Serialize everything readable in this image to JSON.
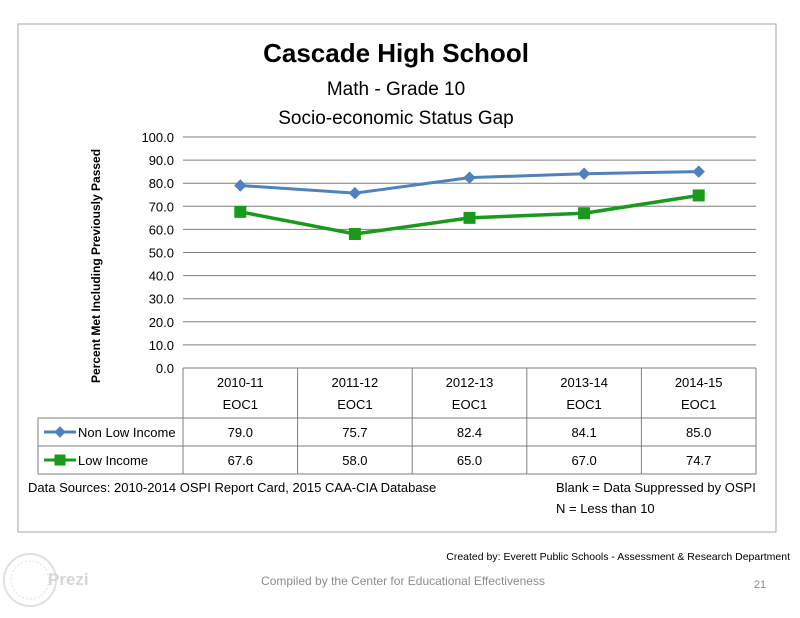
{
  "chart_data": {
    "type": "line",
    "title": "Cascade High School",
    "subtitle_1": "Math  - Grade 10",
    "subtitle_2": "Socio-economic Status Gap",
    "ylabel": "Percent Met Including Previously Passed",
    "xlabel": "",
    "ylim": [
      0,
      100
    ],
    "ytick_step": 10,
    "y_tick_labels": [
      "0.0",
      "10.0",
      "20.0",
      "30.0",
      "40.0",
      "50.0",
      "60.0",
      "70.0",
      "80.0",
      "90.0",
      "100.0"
    ],
    "categories": [
      {
        "year": "2010-11",
        "test": "EOC1"
      },
      {
        "year": "2011-12",
        "test": "EOC1"
      },
      {
        "year": "2012-13",
        "test": "EOC1"
      },
      {
        "year": "2013-14",
        "test": "EOC1"
      },
      {
        "year": "2014-15",
        "test": "EOC1"
      }
    ],
    "series": [
      {
        "name": "Non Low Income",
        "values": [
          79.0,
          75.7,
          82.4,
          84.1,
          85.0
        ],
        "labels": [
          "79.0",
          "75.7",
          "82.4",
          "84.1",
          "85.0"
        ],
        "color": "#4f81bd",
        "marker": "diamond"
      },
      {
        "name": "Low Income",
        "values": [
          67.6,
          58.0,
          65.0,
          67.0,
          74.7
        ],
        "labels": [
          "67.6",
          "58.0",
          "65.0",
          "67.0",
          "74.7"
        ],
        "color": "#1a9a1a",
        "marker": "square"
      }
    ],
    "grid": true,
    "legend": "data-table",
    "data_sources": "Data Sources: 2010-2014 OSPI Report Card, 2015 CAA-CIA Database",
    "note_blank": "Blank = Data Suppressed by OSPI",
    "note_n": "N = Less than 10"
  },
  "footer": {
    "created_by": "Created by: Everett Public Schools - Assessment & Research Department",
    "compiled_by": "Compiled by the Center for Educational Effectiveness",
    "page_number": "21",
    "brand": "Prezi"
  }
}
